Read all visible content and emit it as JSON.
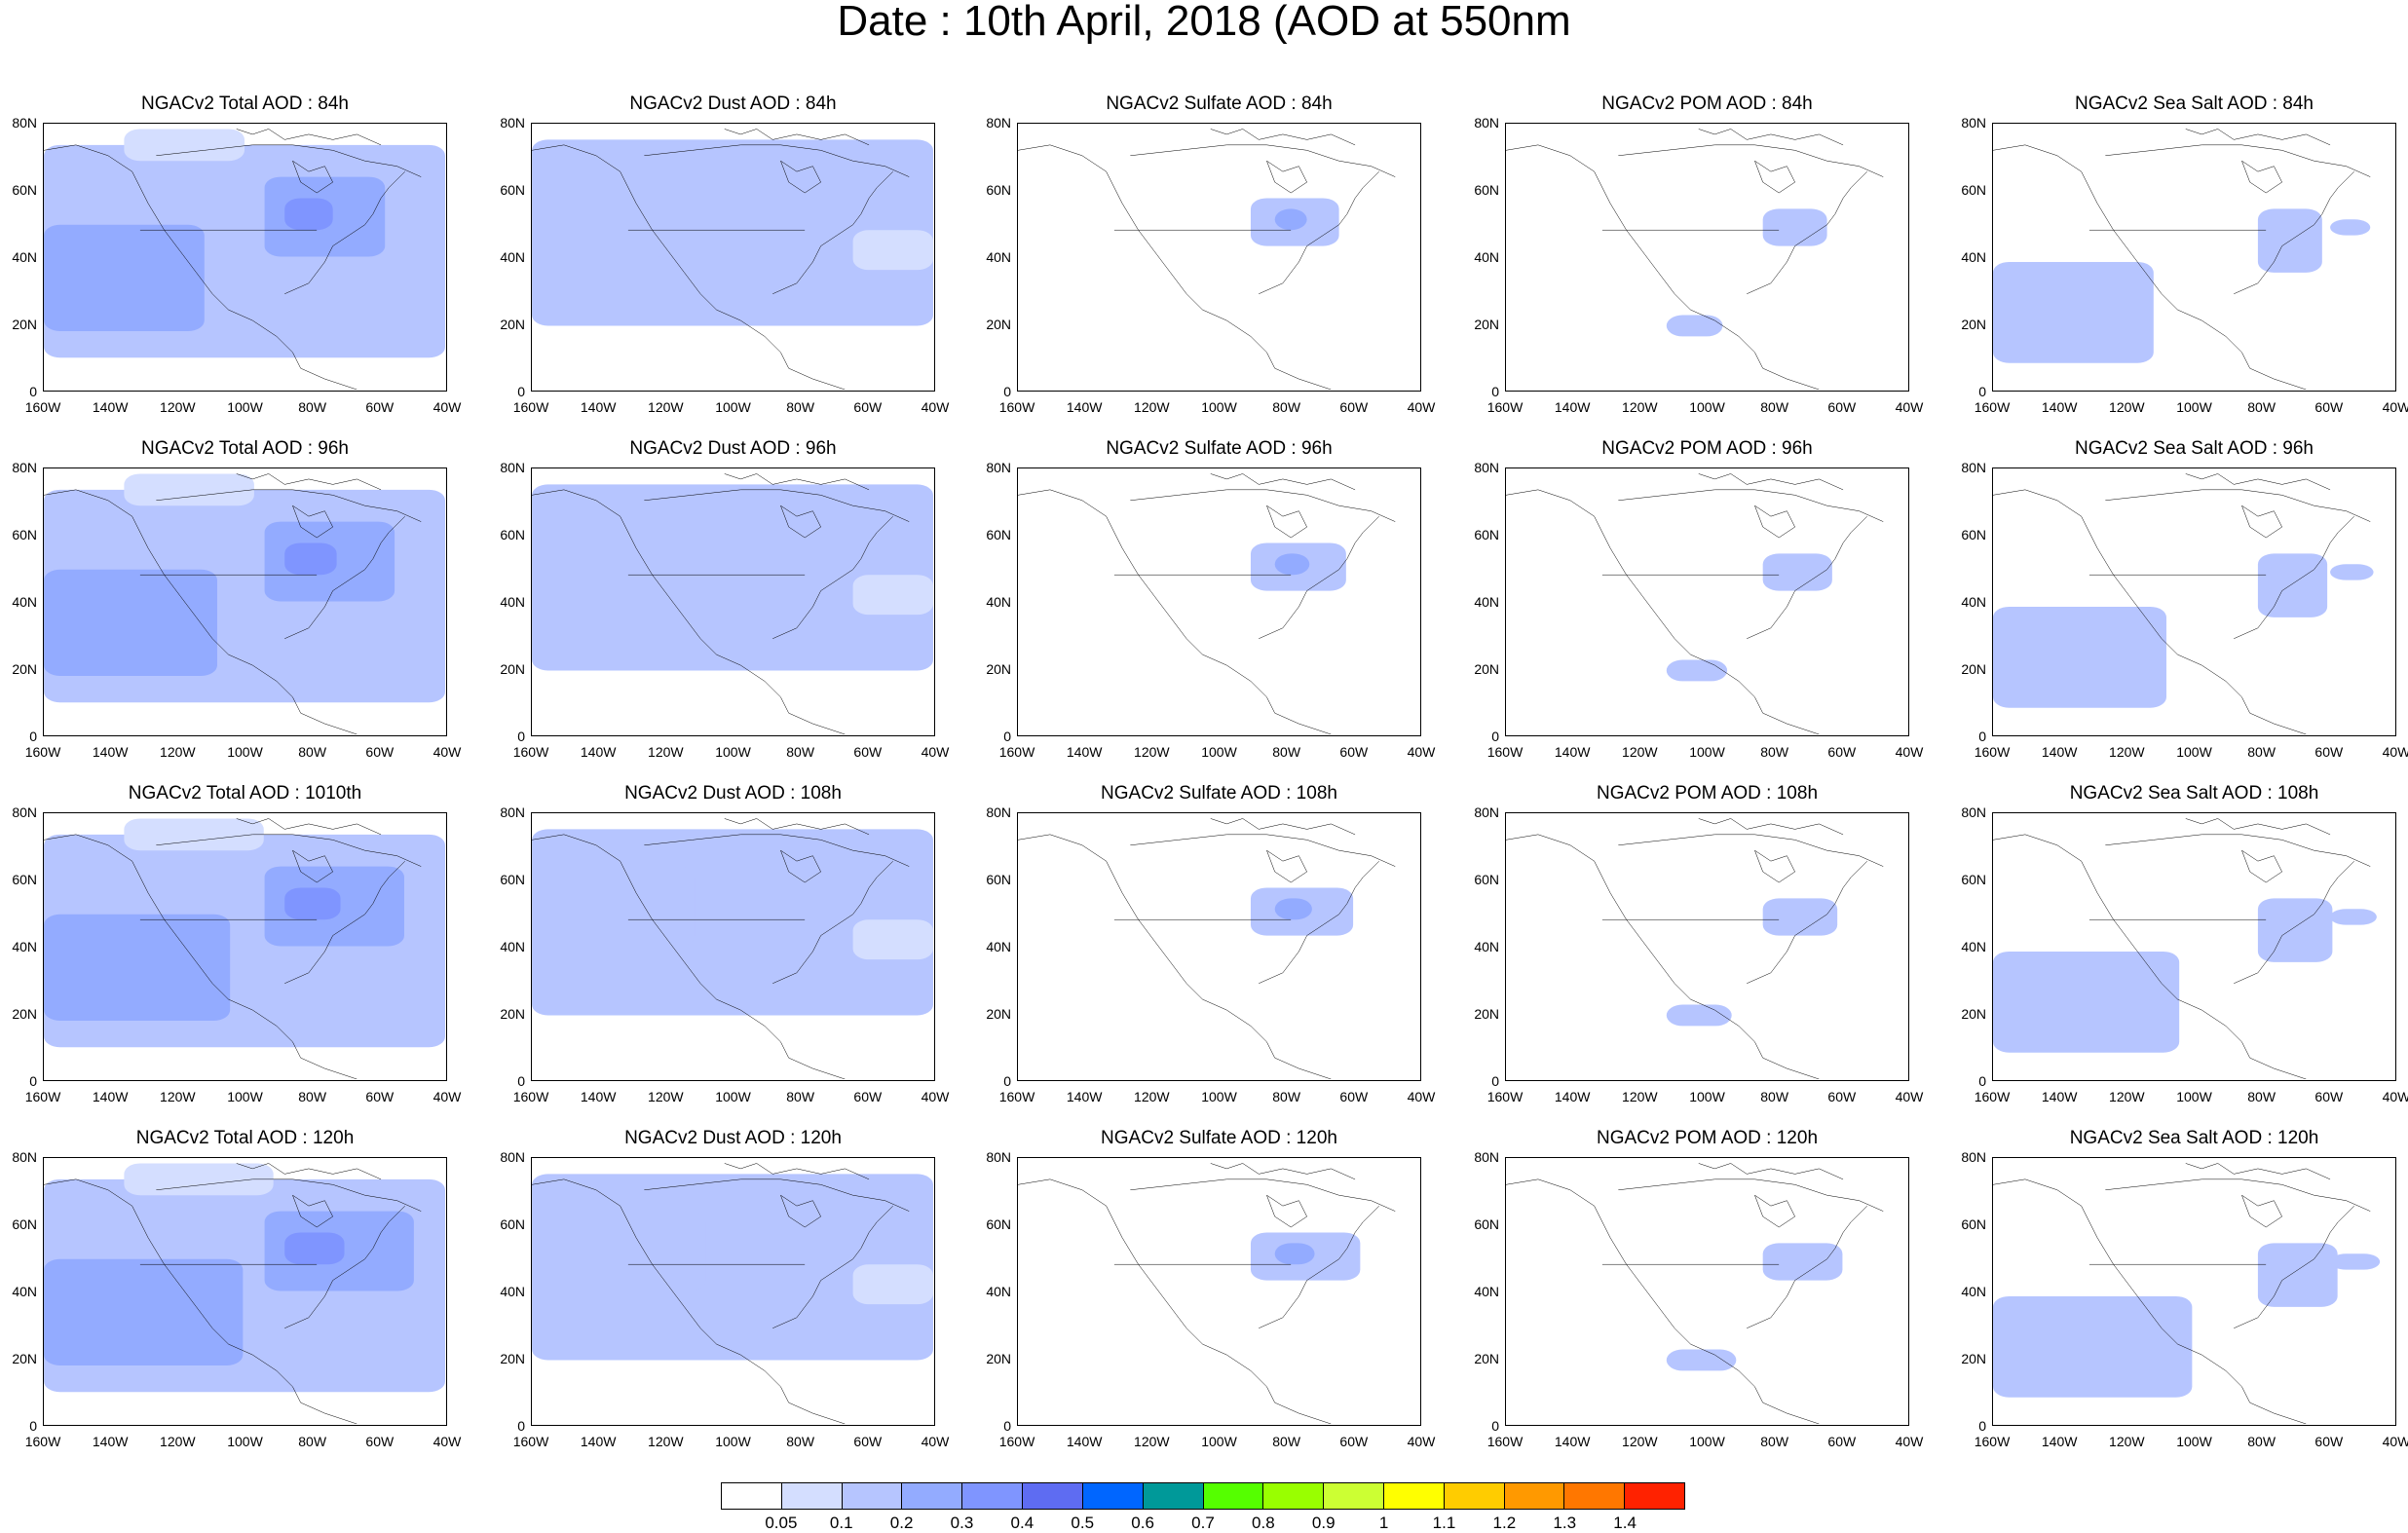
{
  "title": "Date : 10th April, 2018 (AOD at 550nm",
  "panel_titles": [
    [
      "NGACv2 Total AOD : 84h",
      "NGACv2 Dust AOD : 84h",
      "NGACv2 Sulfate AOD : 84h",
      "NGACv2 POM AOD : 84h",
      "NGACv2 Sea Salt AOD : 84h"
    ],
    [
      "NGACv2 Total AOD : 96h",
      "NGACv2 Dust AOD : 96h",
      "NGACv2 Sulfate AOD : 96h",
      "NGACv2 POM AOD : 96h",
      "NGACv2 Sea Salt AOD : 96h"
    ],
    [
      "NGACv2 Total AOD : 1010th",
      "NGACv2 Dust AOD : 108h",
      "NGACv2 Sulfate AOD : 108h",
      "NGACv2 POM AOD : 108h",
      "NGACv2 Sea Salt AOD : 108h"
    ],
    [
      "NGACv2 Total AOD : 120h",
      "NGACv2 Dust AOD : 120h",
      "NGACv2 Sulfate AOD : 120h",
      "NGACv2 POM AOD : 120h",
      "NGACv2 Sea Salt  AOD : 120h"
    ]
  ],
  "lat_ticks": [
    "80N",
    "60N",
    "40N",
    "20N",
    "0"
  ],
  "lon_ticks": [
    "160W",
    "140W",
    "120W",
    "100W",
    "80W",
    "60W",
    "40W"
  ],
  "colorbar": {
    "colors": [
      "#ffffff",
      "#d4deff",
      "#b6c5ff",
      "#93abff",
      "#7f95ff",
      "#5e6cf2",
      "#0066ff",
      "#009999",
      "#55ff00",
      "#99ff00",
      "#ccff33",
      "#ffff00",
      "#ffcc00",
      "#ff9900",
      "#ff7700",
      "#ff2200"
    ],
    "labels": [
      "0.05",
      "0.1",
      "0.2",
      "0.3",
      "0.4",
      "0.5",
      "0.6",
      "0.7",
      "0.8",
      "0.9",
      "1",
      "1.1",
      "1.2",
      "1.3",
      "1.4"
    ]
  }
}
